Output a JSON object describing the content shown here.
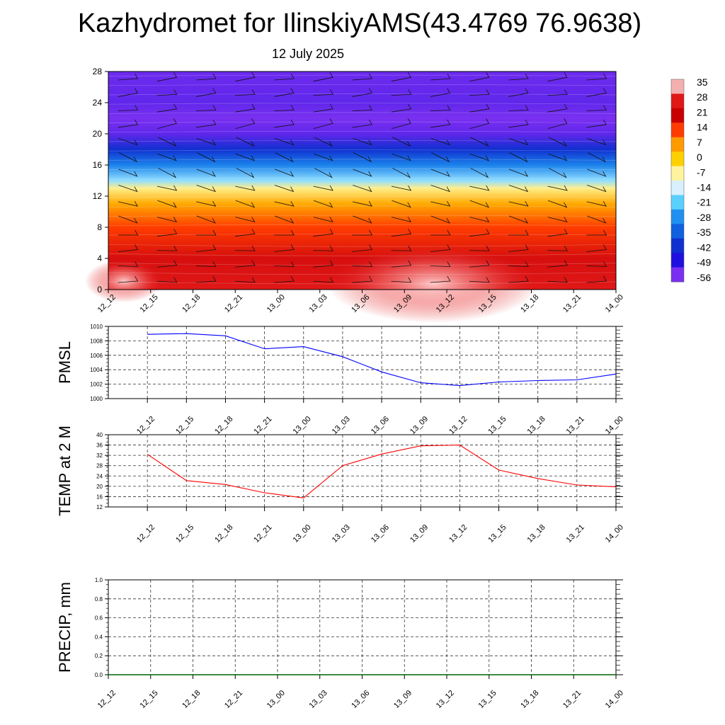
{
  "title": "Kazhydromet for IlinskiyAMS(43.4769 76.9638)",
  "subtitle": "12 July 2025",
  "colors": {
    "pmsl_line": "#0000ff",
    "temp_line": "#ff0000",
    "precip_line": "#006400"
  },
  "chart_data": [
    {
      "type": "heatmap",
      "x_tick_labels": [
        "12_12",
        "12_15",
        "12_18",
        "12_21",
        "13_00",
        "13_03",
        "13_06",
        "13_09",
        "13_12",
        "13_15",
        "13_18",
        "13_21",
        "14_00"
      ],
      "y_tick_labels": [
        "0",
        "4",
        "8",
        "12",
        "16",
        "20",
        "24",
        "28"
      ],
      "ylim": [
        0,
        28
      ],
      "colorbar_labels": [
        "35",
        "28",
        "21",
        "14",
        "7",
        "0",
        "-7",
        "-14",
        "-21",
        "-28",
        "-35",
        "-42",
        "-49",
        "-56"
      ],
      "colorbar_colors": [
        "#f4b0b0",
        "#e01818",
        "#c80000",
        "#ff3c00",
        "#ff9a00",
        "#ffd000",
        "#fff3a0",
        "#d8f0ff",
        "#5ad0ff",
        "#2090f0",
        "#1060e0",
        "#1030d0",
        "#2010e0",
        "#7a30f0"
      ],
      "profile": [
        {
          "h": 0,
          "t": 28
        },
        {
          "h": 4,
          "t": 25
        },
        {
          "h": 8,
          "t": 14
        },
        {
          "h": 11,
          "t": 5
        },
        {
          "h": 13,
          "t": -6
        },
        {
          "h": 14,
          "t": -18
        },
        {
          "h": 16,
          "t": -30
        },
        {
          "h": 18,
          "t": -42
        },
        {
          "h": 20,
          "t": -54
        },
        {
          "h": 22,
          "t": -58
        },
        {
          "h": 24,
          "t": -54
        },
        {
          "h": 28,
          "t": -55
        }
      ]
    },
    {
      "type": "line",
      "ylabel": "PMSL",
      "ylim": [
        1000,
        1010
      ],
      "y_ticks": [
        "1000",
        "1002",
        "1004",
        "1006",
        "1008",
        "1010"
      ],
      "categories": [
        "12_12",
        "12_15",
        "12_18",
        "12_21",
        "13_00",
        "13_03",
        "13_06",
        "13_09",
        "13_12",
        "13_15",
        "13_18",
        "13_21",
        "14_00"
      ],
      "values": [
        1008.9,
        1009.0,
        1008.7,
        1006.9,
        1007.2,
        1005.8,
        1003.7,
        1002.2,
        1001.8,
        1002.3,
        1002.5,
        1002.6,
        1003.4
      ]
    },
    {
      "type": "line",
      "ylabel": "TEMP at 2 M",
      "ylim": [
        12,
        40
      ],
      "y_ticks": [
        "12",
        "16",
        "20",
        "24",
        "28",
        "32",
        "36",
        "40"
      ],
      "categories": [
        "12_12",
        "12_15",
        "12_18",
        "12_21",
        "13_00",
        "13_03",
        "13_06",
        "13_09",
        "13_12",
        "13_15",
        "13_18",
        "13_21",
        "14_00"
      ],
      "values": [
        32.4,
        22.2,
        20.7,
        17.5,
        15.5,
        28.0,
        32.5,
        35.7,
        36.0,
        26.3,
        23.0,
        20.5,
        19.8
      ]
    },
    {
      "type": "line",
      "ylabel": "PRECIP, mm",
      "ylim": [
        0,
        1
      ],
      "y_ticks": [
        "0.0",
        "0.2",
        "0.4",
        "0.6",
        "0.8",
        "1.0"
      ],
      "categories": [
        "12_12",
        "12_15",
        "12_18",
        "12_21",
        "13_00",
        "13_03",
        "13_06",
        "13_09",
        "13_12",
        "13_15",
        "13_18",
        "13_21",
        "14_00"
      ],
      "values": [
        0,
        0,
        0,
        0,
        0,
        0,
        0,
        0,
        0,
        0,
        0,
        0,
        0
      ]
    }
  ]
}
